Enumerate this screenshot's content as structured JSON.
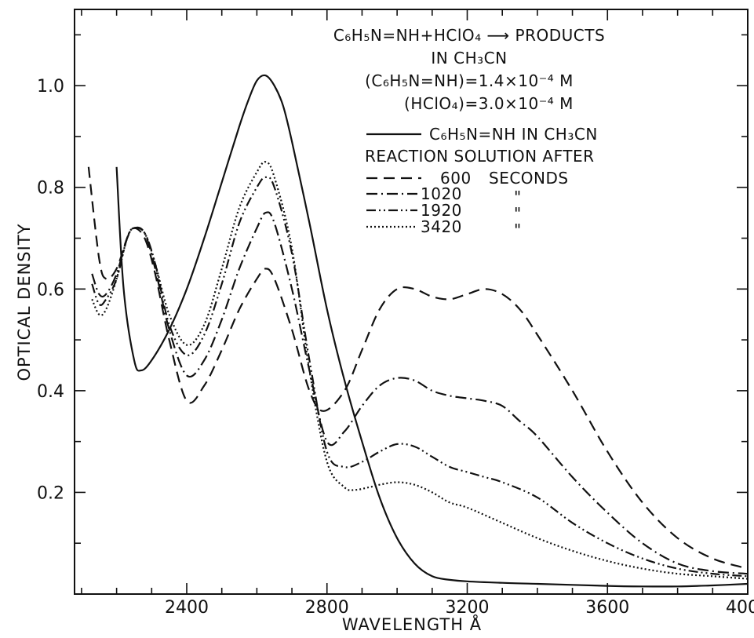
{
  "chart_data": {
    "type": "line",
    "xlabel": "WAVELENGTH Å",
    "ylabel": "OPTICAL DENSITY",
    "xlim": [
      2080,
      4000
    ],
    "ylim": [
      0,
      1.15
    ],
    "x_ticks": [
      2400,
      2800,
      3200,
      3600,
      4000
    ],
    "x_tick_labels": [
      "2400",
      "2800",
      "3200",
      "3600",
      "4000"
    ],
    "y_ticks": [
      0.2,
      0.4,
      0.6,
      0.8,
      1.0
    ],
    "y_tick_labels": [
      "0.2",
      "0.4",
      "0.6",
      "0.8",
      "1.0"
    ],
    "grid": false,
    "legend_position": "top-right",
    "annotation": {
      "line1": "C₆H₅N=NH+HClO₄ ⟶ PRODUCTS",
      "line2": "IN CH₃CN",
      "line3": "(C₆H₅N=NH)=1.4×10⁻⁴ M",
      "line4": "(HClO₄)=3.0×10⁻⁴ M"
    },
    "legend": {
      "solid_label": "C₆H₅N=NH IN CH₃CN",
      "subtitle": "REACTION SOLUTION AFTER",
      "entries": [
        {
          "value": "600",
          "unit": "SECONDS"
        },
        {
          "value": "1020",
          "unit": "\""
        },
        {
          "value": "1920",
          "unit": "\""
        },
        {
          "value": "3420",
          "unit": "\""
        }
      ]
    },
    "series": [
      {
        "style": "solid",
        "x": [
          2200,
          2220,
          2250,
          2270,
          2300,
          2350,
          2400,
          2450,
          2500,
          2550,
          2575,
          2600,
          2625,
          2650,
          2675,
          2700,
          2750,
          2800,
          2850,
          2900,
          2950,
          3000,
          3050,
          3100,
          3150,
          3200,
          3300,
          3400,
          3500,
          3600,
          3700,
          3800,
          3900,
          4000
        ],
        "y": [
          0.84,
          0.6,
          0.46,
          0.44,
          0.46,
          0.52,
          0.6,
          0.7,
          0.81,
          0.92,
          0.97,
          1.01,
          1.02,
          1.0,
          0.96,
          0.89,
          0.73,
          0.56,
          0.42,
          0.3,
          0.19,
          0.11,
          0.06,
          0.035,
          0.028,
          0.025,
          0.022,
          0.02,
          0.018,
          0.016,
          0.015,
          0.015,
          0.017,
          0.02
        ]
      },
      {
        "style": "dashed",
        "x": [
          2120,
          2150,
          2170,
          2200,
          2230,
          2250,
          2280,
          2310,
          2350,
          2400,
          2450,
          2500,
          2550,
          2600,
          2625,
          2650,
          2700,
          2750,
          2790,
          2850,
          2900,
          2950,
          3000,
          3050,
          3100,
          3150,
          3200,
          3250,
          3300,
          3350,
          3400,
          3500,
          3600,
          3700,
          3800,
          3900,
          4000
        ],
        "y": [
          0.84,
          0.66,
          0.62,
          0.64,
          0.7,
          0.72,
          0.7,
          0.63,
          0.5,
          0.38,
          0.41,
          0.48,
          0.56,
          0.62,
          0.64,
          0.62,
          0.52,
          0.4,
          0.36,
          0.4,
          0.48,
          0.56,
          0.6,
          0.6,
          0.585,
          0.58,
          0.59,
          0.6,
          0.59,
          0.56,
          0.51,
          0.4,
          0.28,
          0.18,
          0.11,
          0.07,
          0.05
        ]
      },
      {
        "style": "dash-dot",
        "x": [
          2130,
          2150,
          2170,
          2200,
          2230,
          2250,
          2280,
          2310,
          2350,
          2400,
          2450,
          2500,
          2550,
          2600,
          2625,
          2650,
          2700,
          2750,
          2800,
          2850,
          2900,
          2950,
          3000,
          3050,
          3100,
          3150,
          3200,
          3250,
          3300,
          3350,
          3400,
          3500,
          3600,
          3700,
          3800,
          3900,
          4000
        ],
        "y": [
          0.63,
          0.59,
          0.59,
          0.63,
          0.7,
          0.72,
          0.71,
          0.64,
          0.52,
          0.43,
          0.46,
          0.54,
          0.64,
          0.72,
          0.75,
          0.73,
          0.6,
          0.44,
          0.3,
          0.32,
          0.37,
          0.41,
          0.425,
          0.42,
          0.4,
          0.39,
          0.385,
          0.38,
          0.37,
          0.34,
          0.31,
          0.23,
          0.16,
          0.1,
          0.06,
          0.045,
          0.04
        ]
      },
      {
        "style": "dash-dot-dot",
        "x": [
          2130,
          2150,
          2170,
          2200,
          2230,
          2250,
          2280,
          2310,
          2350,
          2400,
          2450,
          2500,
          2550,
          2600,
          2625,
          2650,
          2700,
          2750,
          2800,
          2850,
          2900,
          2950,
          3000,
          3050,
          3100,
          3150,
          3200,
          3250,
          3300,
          3400,
          3500,
          3600,
          3700,
          3800,
          3900,
          4000
        ],
        "y": [
          0.61,
          0.57,
          0.58,
          0.62,
          0.7,
          0.72,
          0.71,
          0.65,
          0.53,
          0.47,
          0.51,
          0.61,
          0.73,
          0.8,
          0.82,
          0.8,
          0.67,
          0.46,
          0.28,
          0.25,
          0.26,
          0.28,
          0.295,
          0.29,
          0.27,
          0.25,
          0.24,
          0.23,
          0.22,
          0.19,
          0.14,
          0.1,
          0.07,
          0.05,
          0.04,
          0.035
        ]
      },
      {
        "style": "dotted",
        "x": [
          2130,
          2150,
          2170,
          2200,
          2230,
          2250,
          2280,
          2310,
          2350,
          2400,
          2450,
          2500,
          2550,
          2600,
          2625,
          2650,
          2700,
          2750,
          2800,
          2850,
          2880,
          2920,
          2950,
          3000,
          3050,
          3100,
          3150,
          3200,
          3300,
          3400,
          3500,
          3600,
          3700,
          3800,
          3900,
          4000
        ],
        "y": [
          0.58,
          0.55,
          0.56,
          0.62,
          0.7,
          0.72,
          0.71,
          0.65,
          0.55,
          0.49,
          0.53,
          0.64,
          0.76,
          0.83,
          0.85,
          0.82,
          0.68,
          0.44,
          0.26,
          0.21,
          0.205,
          0.21,
          0.215,
          0.22,
          0.215,
          0.2,
          0.18,
          0.17,
          0.14,
          0.11,
          0.085,
          0.065,
          0.05,
          0.04,
          0.035,
          0.03
        ]
      }
    ]
  }
}
